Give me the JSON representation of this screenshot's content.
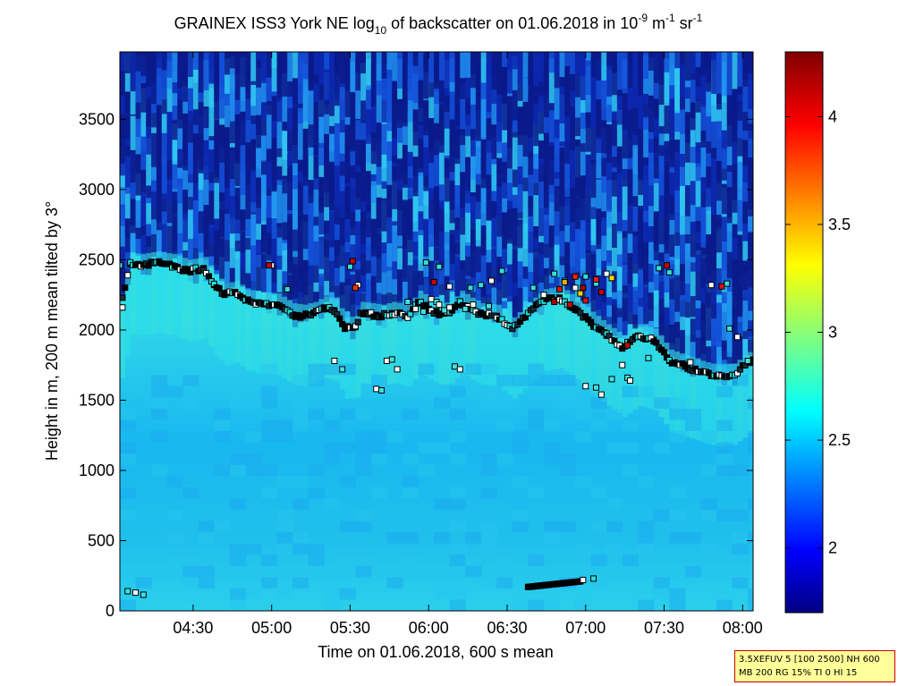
{
  "chart_data": {
    "type": "heatmap",
    "title": {
      "part1": "GRAINEX ISS3 York NE log",
      "sub1": "10",
      "part2": " of backscatter on 01.06.2018 in 10",
      "sup1": "-9",
      "part3": " m",
      "sup2": "-1",
      "part4": " sr",
      "sup3": "-1"
    },
    "xlabel": "Time on 01.06.2018, 600 s mean",
    "ylabel": "Height in m, 200 m mean tilted by 3°",
    "xlim": [
      "04:02",
      "08:04"
    ],
    "xlim_minutes": [
      242,
      484
    ],
    "ylim": [
      0,
      3980
    ],
    "x_ticks": [
      {
        "label": "04:30",
        "minutes": 270
      },
      {
        "label": "05:00",
        "minutes": 300
      },
      {
        "label": "05:30",
        "minutes": 330
      },
      {
        "label": "06:00",
        "minutes": 360
      },
      {
        "label": "06:30",
        "minutes": 390
      },
      {
        "label": "07:00",
        "minutes": 420
      },
      {
        "label": "07:30",
        "minutes": 450
      },
      {
        "label": "08:00",
        "minutes": 480
      }
    ],
    "y_ticks": [
      0,
      500,
      1000,
      1500,
      2000,
      2500,
      3000,
      3500
    ],
    "colorbar": {
      "range": [
        1.7,
        4.3
      ],
      "ticks": [
        2,
        2.5,
        3,
        3.5,
        4
      ],
      "colormap": "jet"
    },
    "boundary_layer_top": {
      "minutes": [
        242,
        246,
        250,
        256,
        262,
        268,
        274,
        278,
        282,
        286,
        290,
        296,
        302,
        308,
        312,
        316,
        320,
        324,
        328,
        332,
        334,
        338,
        342,
        346,
        352,
        356,
        360,
        364,
        368,
        372,
        376,
        380,
        386,
        392,
        398,
        404,
        410,
        416,
        422,
        428,
        434,
        440,
        446,
        452,
        458,
        464,
        470,
        476,
        484
      ],
      "heights": [
        2160,
        2470,
        2460,
        2480,
        2460,
        2420,
        2440,
        2320,
        2250,
        2270,
        2210,
        2190,
        2180,
        2110,
        2100,
        2120,
        2160,
        2140,
        2010,
        2020,
        2120,
        2110,
        2100,
        2120,
        2100,
        2200,
        2150,
        2110,
        2120,
        2200,
        2150,
        2110,
        2100,
        2010,
        2120,
        2210,
        2230,
        2150,
        2050,
        1960,
        1880,
        1960,
        1930,
        1780,
        1740,
        1700,
        1670,
        1680,
        1790
      ]
    },
    "upper_layer": {
      "minutes": [
        300,
        306,
        330,
        333,
        359,
        364,
        368,
        376,
        380,
        384,
        388,
        400,
        404,
        408,
        412,
        416,
        420,
        424,
        428,
        448,
        452,
        468,
        474
      ],
      "heights": [
        2460,
        2290,
        2450,
        2320,
        2480,
        2450,
        2310,
        2300,
        2320,
        2350,
        2420,
        2300,
        2250,
        2400,
        2350,
        2300,
        2380,
        2330,
        2400,
        2440,
        2410,
        2320,
        2330
      ]
    },
    "high_values": {
      "minutes": [
        299,
        331,
        332,
        362,
        408,
        410,
        412,
        414,
        416,
        418,
        419,
        420,
        424,
        426,
        430,
        436,
        451,
        472
      ],
      "heights": [
        2460,
        2490,
        2300,
        2340,
        2200,
        2290,
        2340,
        2180,
        2380,
        2260,
        2300,
        2210,
        2360,
        2270,
        2370,
        1890,
        2460,
        2310
      ],
      "colors": [
        "#cc0000",
        "#cc0000",
        "#ff3300",
        "#cc0000",
        "#aa0000",
        "#dd1111",
        "#ffaa00",
        "#cc0000",
        "#ff2200",
        "#ffcc00",
        "#aa0000",
        "#dd1111",
        "#ee2222",
        "#cc0000",
        "#ffdd00",
        "#cc0000",
        "#cc0000",
        "#dd1111"
      ]
    },
    "scattered_points": {
      "minutes": [
        242,
        243,
        245,
        248,
        251,
        324,
        327,
        340,
        342,
        344,
        346,
        348,
        352,
        355,
        358,
        361,
        363,
        364,
        366,
        368,
        370,
        372,
        374,
        377,
        383,
        420,
        424,
        426,
        430,
        434,
        436,
        437,
        444,
        460,
        475,
        478,
        482
      ],
      "heights": [
        2460,
        2160,
        140,
        130,
        115,
        1780,
        1720,
        1580,
        1570,
        1780,
        1790,
        1720,
        2200,
        2150,
        2130,
        2220,
        2200,
        2180,
        2140,
        2160,
        1740,
        1720,
        2150,
        2180,
        2170,
        1600,
        1590,
        1540,
        1650,
        1750,
        1660,
        1640,
        1800,
        1770,
        2010,
        1950,
        1780
      ]
    },
    "surface_layer": {
      "minutes_start": 398,
      "minutes_end": 418,
      "heights": [
        170,
        210
      ]
    }
  },
  "info_box": {
    "line1": "3.5XEFUV 5 [100 2500] NH 600",
    "line2": "MB 200 RG 15% TI 0 HI 15"
  }
}
